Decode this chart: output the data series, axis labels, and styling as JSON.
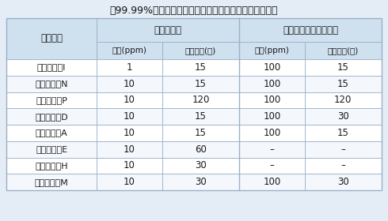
{
  "title": "、99.99%以上の各種ウイルスを除去させる条件の比較】",
  "col_header_1": "二酸化塗素",
  "col_header_2": "次亜塗素酸ナトリウム",
  "sub_headers": [
    "濃度(ppm)",
    "作用時間(秒)",
    "濃度(ppm)",
    "作用時間(秒)"
  ],
  "virus_label": "ウイルス",
  "rows": [
    [
      "ウイルス　I",
      "1",
      "15",
      "100",
      "15"
    ],
    [
      "ウイルス　N",
      "10",
      "15",
      "100",
      "15"
    ],
    [
      "ウイルス　P",
      "10",
      "120",
      "100",
      "120"
    ],
    [
      "ウイルス　D",
      "10",
      "15",
      "100",
      "30"
    ],
    [
      "ウイルス　A",
      "10",
      "15",
      "100",
      "15"
    ],
    [
      "ウイルス　E",
      "10",
      "60",
      "–",
      "–"
    ],
    [
      "ウイルス　H",
      "10",
      "30",
      "–",
      "–"
    ],
    [
      "ウイルス　M",
      "10",
      "30",
      "100",
      "30"
    ]
  ],
  "subheader_bg": "#cfe0ef",
  "row_bg_white": "#ffffff",
  "row_bg_light": "#f4f8fc",
  "border_color": "#9ab0c8",
  "text_color": "#1a1a1a",
  "title_color": "#111111",
  "outer_bg": "#e4edf5"
}
